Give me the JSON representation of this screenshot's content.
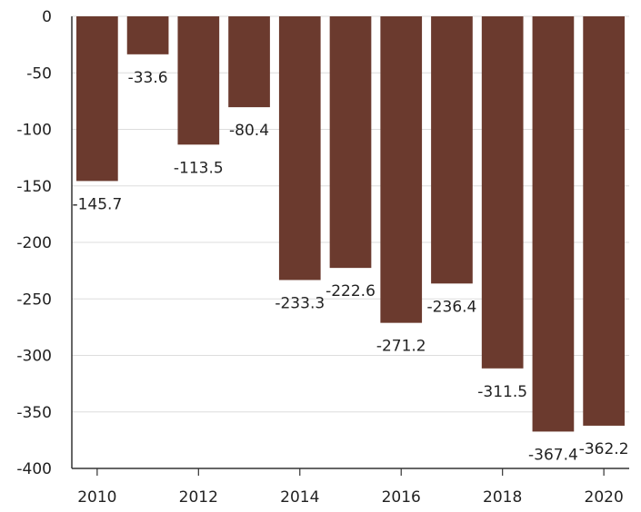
{
  "chart_data": {
    "type": "bar",
    "title": "",
    "xlabel": "",
    "ylabel": "",
    "categories": [
      "2010",
      "2011",
      "2012",
      "2013",
      "2014",
      "2015",
      "2016",
      "2017",
      "2018",
      "2019",
      "2020"
    ],
    "values": [
      -145.7,
      -33.6,
      -113.5,
      -80.4,
      -233.3,
      -222.6,
      -271.2,
      -236.4,
      -311.5,
      -367.4,
      -362.2
    ],
    "value_labels": [
      "-145.7",
      "-33.6",
      "-113.5",
      "-80.4",
      "-233.3",
      "-222.6",
      "-271.2",
      "-236.4",
      "-311.5",
      "-367.4",
      "-362.2"
    ],
    "x_tick_labels": [
      "2010",
      "2012",
      "2014",
      "2016",
      "2018",
      "2020"
    ],
    "y_ticks": [
      0,
      -50,
      -100,
      -150,
      -200,
      -250,
      -300,
      -350,
      -400
    ],
    "y_tick_labels": [
      "0",
      "-50",
      "-100",
      "-150",
      "-200",
      "-250",
      "-300",
      "-350",
      "-400"
    ],
    "ylim": [
      -400,
      0
    ],
    "grid": true,
    "legend": "none",
    "colors": {
      "bar": "#6b3a2e",
      "grid": "#dddddd",
      "axis": "#333333"
    }
  }
}
